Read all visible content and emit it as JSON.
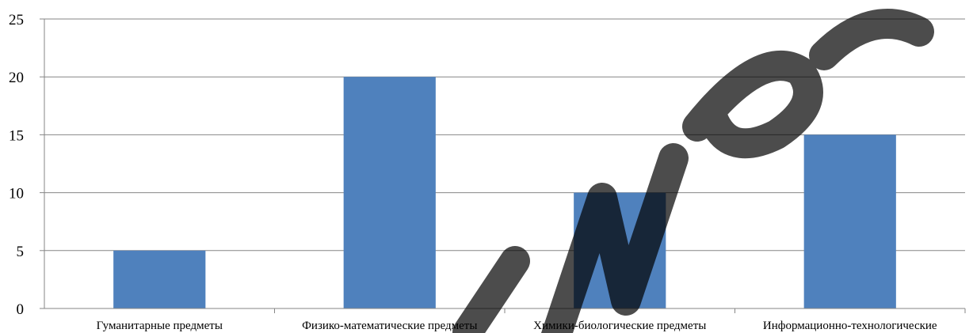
{
  "chart_data": {
    "type": "bar",
    "categories": [
      "Гуманитарные предметы",
      "Физико-математические предметы",
      "Химики-биологические предметы",
      "Информационно-технологические"
    ],
    "values": [
      5,
      20,
      10,
      15
    ],
    "title": "",
    "xlabel": "",
    "ylabel": "",
    "ylim": [
      0,
      25
    ],
    "yticks": [
      "0",
      "5",
      "10",
      "15",
      "20",
      "25"
    ],
    "grid": true,
    "legend": "none",
    "bar_color": "#4f81bd"
  }
}
